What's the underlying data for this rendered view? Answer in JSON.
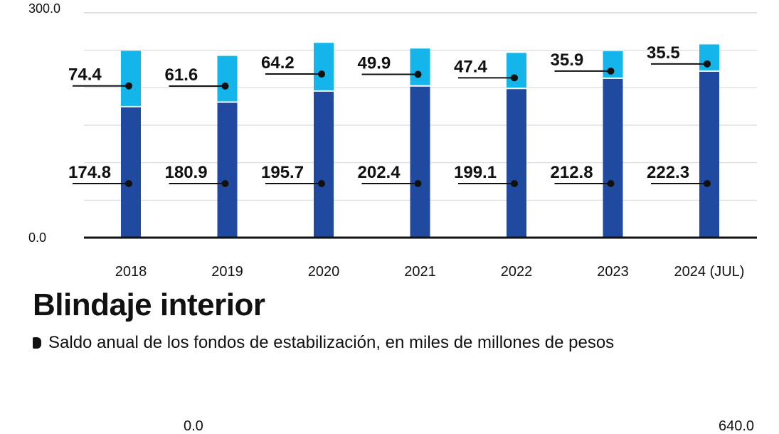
{
  "chart_data": {
    "type": "bar",
    "stacked": true,
    "title": "Blindaje interior",
    "subtitle": "Saldo anual de los fondos de estabilización, en miles de millones de pesos",
    "categories": [
      "2018",
      "2019",
      "2020",
      "2021",
      "2022",
      "2023",
      "2024 (JUL)"
    ],
    "series": [
      {
        "values": [
          174.8,
          180.9,
          195.7,
          202.4,
          199.1,
          212.8,
          222.3
        ],
        "color": "#1f4aa0"
      },
      {
        "values": [
          74.4,
          61.6,
          64.2,
          49.9,
          47.4,
          35.9,
          35.5
        ],
        "color": "#13b5ea"
      }
    ],
    "ylim": [
      0,
      300
    ],
    "yticks": [
      "0.0",
      "300.0"
    ],
    "grid": true
  },
  "bottom_scale": {
    "left": "0.0",
    "right": "640.0"
  }
}
